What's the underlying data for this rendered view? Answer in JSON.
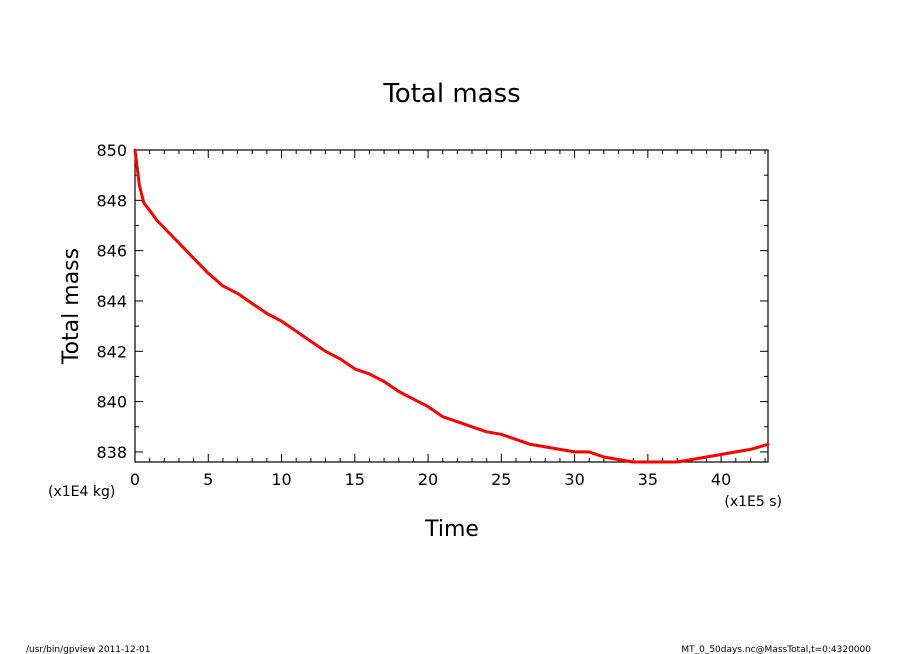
{
  "footer": {
    "left": "/usr/bin/gpview   2011-12-01",
    "right": "MT_0_50days.nc@MassTotal,t=0:4320000"
  },
  "chart_data": {
    "type": "line",
    "title": "Total mass",
    "xlabel": "Time",
    "ylabel": "Total mass",
    "x_unit": "(x1E5 s)",
    "y_unit": "(x1E4 kg)",
    "xlim": [
      0,
      43.2
    ],
    "ylim": [
      837.6,
      850
    ],
    "x_ticks": [
      0,
      5,
      10,
      15,
      20,
      25,
      30,
      35,
      40
    ],
    "y_ticks": [
      838,
      840,
      842,
      844,
      846,
      848,
      850
    ],
    "grid": false,
    "line_color": "#ff0000",
    "series": [
      {
        "x": [
          0,
          0.3,
          0.6,
          1.0,
          1.5,
          2.0,
          2.5,
          3.0,
          3.5,
          4.0,
          4.5,
          5.0,
          6.0,
          7.0,
          8.0,
          9.0,
          10.0,
          11.0,
          12.0,
          13.0,
          14.0,
          15.0,
          16.0,
          17.0,
          18.0,
          19.0,
          20.0,
          21.0,
          22.0,
          23.0,
          24.0,
          25.0,
          26.0,
          27.0,
          28.0,
          29.0,
          30.0,
          31.0,
          32.0,
          33.0,
          34.0,
          35.0,
          36.0,
          37.0,
          38.0,
          39.0,
          40.0,
          41.0,
          42.0,
          43.2
        ],
        "y": [
          850.0,
          848.6,
          847.9,
          847.6,
          847.2,
          846.9,
          846.6,
          846.3,
          846.0,
          845.7,
          845.4,
          845.1,
          844.6,
          844.3,
          843.9,
          843.5,
          843.2,
          842.8,
          842.4,
          842.0,
          841.7,
          841.3,
          841.1,
          840.8,
          840.4,
          840.1,
          839.8,
          839.4,
          839.2,
          839.0,
          838.8,
          838.7,
          838.5,
          838.3,
          838.2,
          838.1,
          838.0,
          838.0,
          837.8,
          837.7,
          837.6,
          837.6,
          837.6,
          837.6,
          837.7,
          837.8,
          837.9,
          838.0,
          838.1,
          838.3
        ]
      }
    ]
  }
}
